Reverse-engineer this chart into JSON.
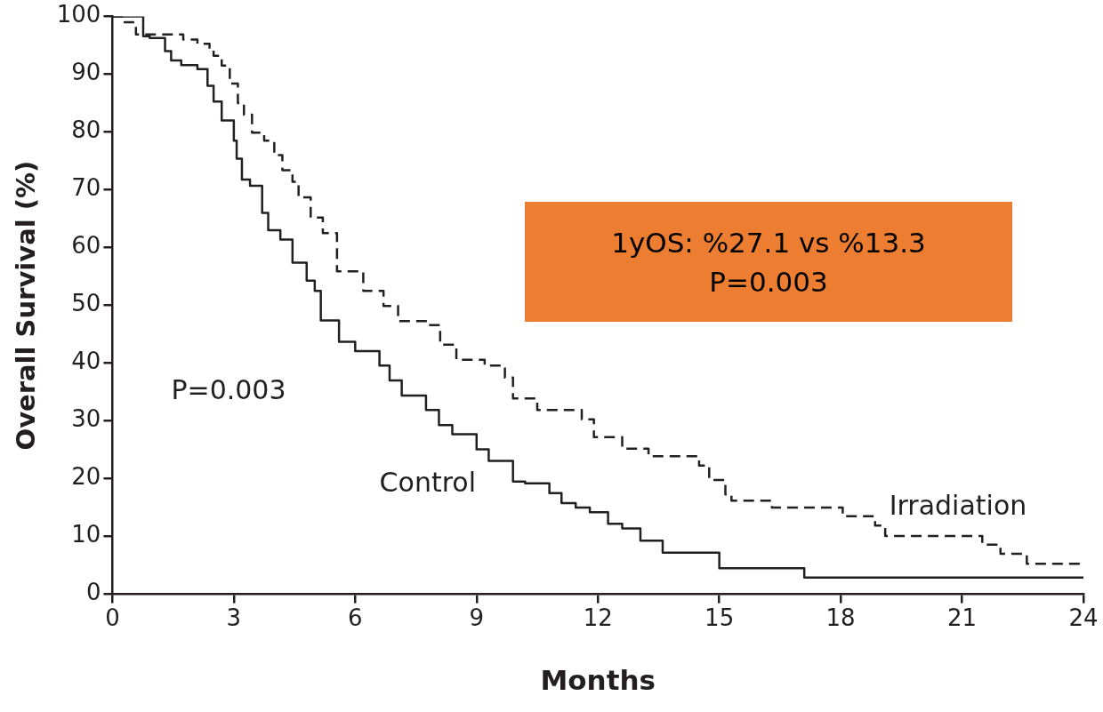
{
  "chart_data": {
    "type": "step",
    "xlabel": "Months",
    "ylabel": "Overall Survival (%)",
    "xlim": [
      0,
      24
    ],
    "xticks": [
      0,
      3,
      6,
      9,
      12,
      15,
      18,
      21,
      24
    ],
    "ylim": [
      0,
      100
    ],
    "yticks": [
      0,
      10,
      20,
      30,
      40,
      50,
      60,
      70,
      80,
      90,
      100
    ],
    "grid": false,
    "legend": false,
    "marker": "none",
    "annotations": [
      "P=0.003",
      "1yOS: %27.1 vs %13.3\nP=0.003"
    ],
    "series": [
      {
        "name": "Control",
        "color": "#231f20",
        "line_style": "solid",
        "x": [
          0,
          0.76,
          0.92,
          1.3,
          1.45,
          1.7,
          2.1,
          2.35,
          2.5,
          2.7,
          3.0,
          3.07,
          3.2,
          3.4,
          3.7,
          3.85,
          4.15,
          4.45,
          4.8,
          5.0,
          5.15,
          5.6,
          6.0,
          6.6,
          6.85,
          7.15,
          7.75,
          8.07,
          8.4,
          9.0,
          9.3,
          9.9,
          10.2,
          10.8,
          11.1,
          11.45,
          11.8,
          12.25,
          12.6,
          13.05,
          13.6,
          15.0,
          17.1,
          24
        ],
        "values": [
          100,
          96.6,
          96.3,
          94,
          92.4,
          91.6,
          90.9,
          88,
          85.3,
          82,
          78.5,
          75.4,
          71.8,
          70.7,
          66,
          63,
          61.4,
          57.4,
          54.3,
          52.5,
          47.4,
          43.7,
          42.1,
          39.6,
          37,
          34.4,
          31.9,
          29.3,
          27.7,
          25.1,
          23.1,
          19.5,
          19.2,
          17.5,
          15.8,
          15,
          14.2,
          12.2,
          11.4,
          9.3,
          7.2,
          4.5,
          2.9,
          2.9
        ]
      },
      {
        "name": "Irradiation",
        "color": "#231f20",
        "line_style": "dashed",
        "x": [
          0,
          0.3,
          0.58,
          1.75,
          2.1,
          2.4,
          2.5,
          2.7,
          2.9,
          3.1,
          3.25,
          3.45,
          3.75,
          4.0,
          4.2,
          4.45,
          4.6,
          4.9,
          5.2,
          5.55,
          6.2,
          6.7,
          7.06,
          7.85,
          8.1,
          8.5,
          9.2,
          9.7,
          9.9,
          10.5,
          11.6,
          11.9,
          12.6,
          13.25,
          14.5,
          14.75,
          15.15,
          15.3,
          16.3,
          18.05,
          18.85,
          19.1,
          21.5,
          21.95,
          22.6,
          24
        ],
        "values": [
          100,
          99,
          96.9,
          96,
          95.3,
          94.6,
          93.2,
          91.5,
          88.4,
          85,
          83,
          79.9,
          78.5,
          76,
          73.4,
          71.4,
          68.7,
          65.2,
          62.5,
          55.9,
          52.5,
          49.9,
          47.3,
          46.6,
          43.2,
          40.6,
          39.6,
          37.5,
          33.9,
          31.9,
          30.3,
          27.2,
          25.2,
          23.9,
          22.3,
          19.8,
          17.3,
          16.2,
          15,
          13.5,
          11.9,
          10.1,
          8.6,
          7,
          5.3,
          5.3
        ]
      }
    ]
  }
}
